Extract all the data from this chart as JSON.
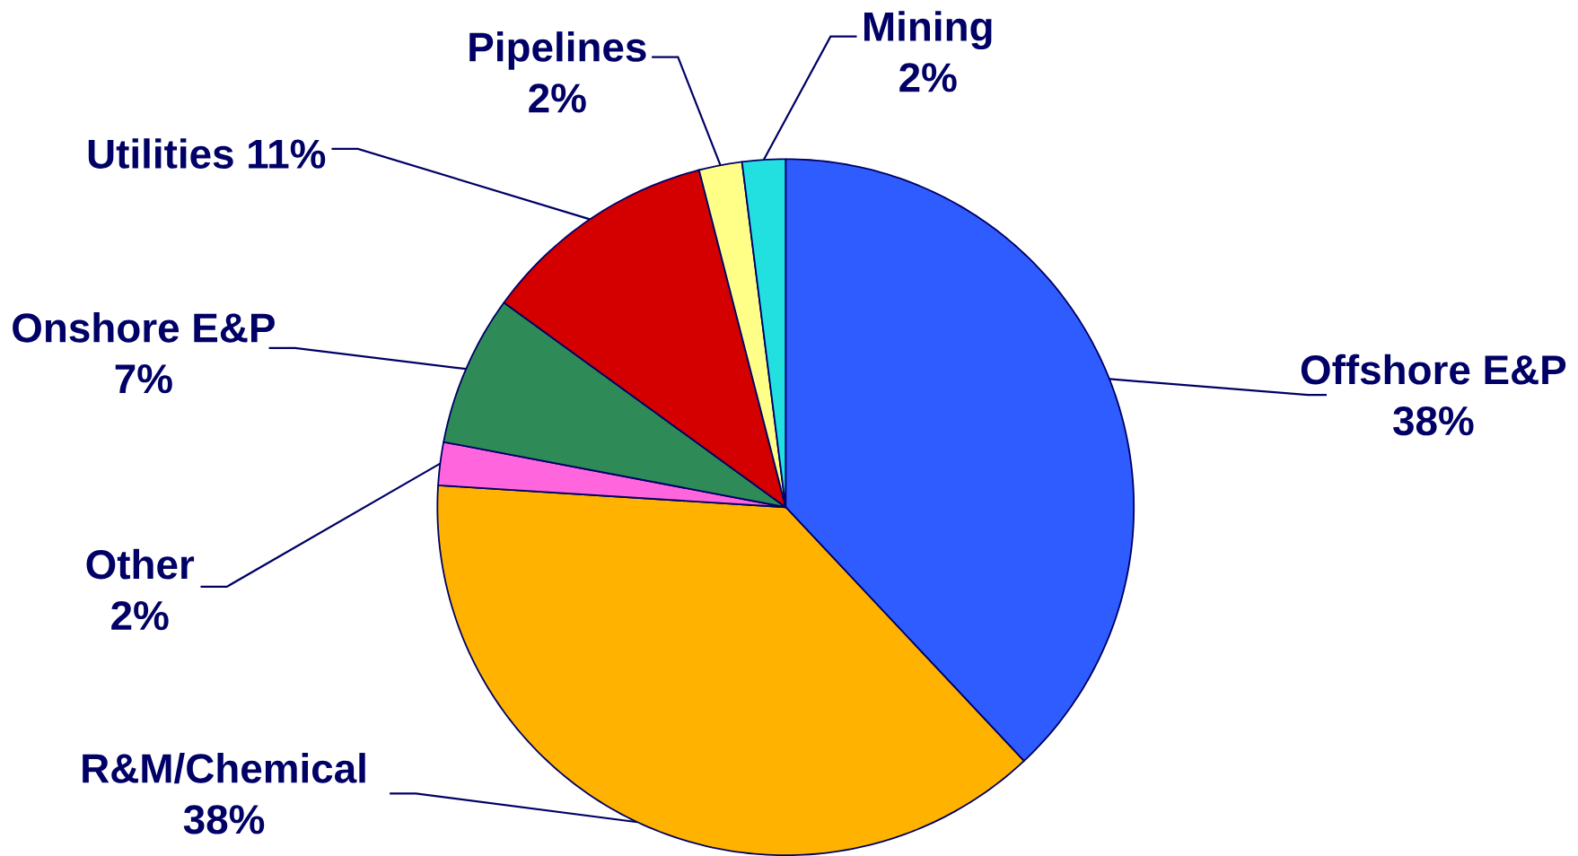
{
  "chart_data": {
    "type": "pie",
    "categories": [
      "Offshore E&P",
      "R&M/Chemical",
      "Other",
      "Onshore E&P",
      "Utilities",
      "Pipelines",
      "Mining"
    ],
    "values": [
      38,
      38,
      2,
      7,
      11,
      2,
      2
    ],
    "value_labels": [
      "38%",
      "38%",
      "2%",
      "7%",
      "11%",
      "2%",
      "2%"
    ],
    "colors": [
      "#2e5cff",
      "#ffb300",
      "#ff66dd",
      "#2e8b57",
      "#d40000",
      "#ffff88",
      "#22e0e0"
    ]
  }
}
